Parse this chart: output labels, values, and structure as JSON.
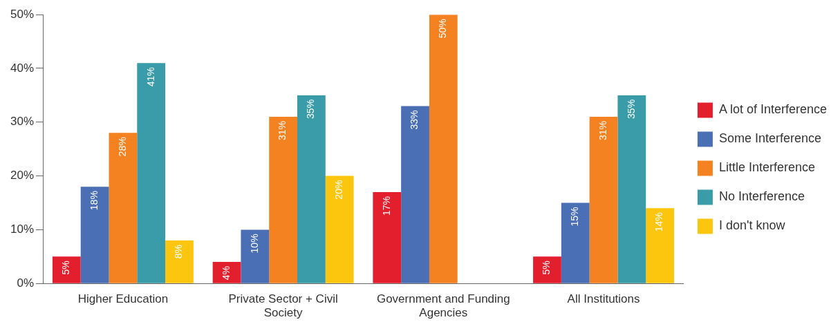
{
  "chart_data": {
    "type": "bar",
    "categories": [
      "Higher Education",
      "Private Sector + Civil Society",
      "Government and Funding Agencies",
      "All Institutions"
    ],
    "series": [
      {
        "name": "A lot of Interference",
        "color": "#e31e2d",
        "values": [
          5,
          4,
          17,
          5
        ],
        "value_labels": [
          "5%",
          "4%",
          "17%",
          "5%"
        ]
      },
      {
        "name": "Some Interference",
        "color": "#4a6fb5",
        "values": [
          18,
          10,
          33,
          15
        ],
        "value_labels": [
          "18%",
          "10%",
          "33%",
          "15%"
        ]
      },
      {
        "name": "Little Interference",
        "color": "#f58220",
        "values": [
          28,
          31,
          50,
          31
        ],
        "value_labels": [
          "28%",
          "31%",
          "50%",
          "31%"
        ]
      },
      {
        "name": "No Interference",
        "color": "#3a9ca8",
        "values": [
          41,
          35,
          null,
          35
        ],
        "value_labels": [
          "41%",
          "35%",
          null,
          "35%"
        ]
      },
      {
        "name": "I don't know",
        "color": "#fcc60f",
        "values": [
          8,
          20,
          null,
          14
        ],
        "value_labels": [
          "8%",
          "20%",
          null,
          "14%"
        ]
      }
    ],
    "ylim": [
      0,
      50
    ],
    "yticks": [
      {
        "value": 0,
        "label": "0%"
      },
      {
        "value": 10,
        "label": "10%"
      },
      {
        "value": 20,
        "label": "20%"
      },
      {
        "value": 30,
        "label": "30%"
      },
      {
        "value": 40,
        "label": "40%"
      },
      {
        "value": 50,
        "label": "50%"
      }
    ],
    "grid": false,
    "legend": "right"
  }
}
